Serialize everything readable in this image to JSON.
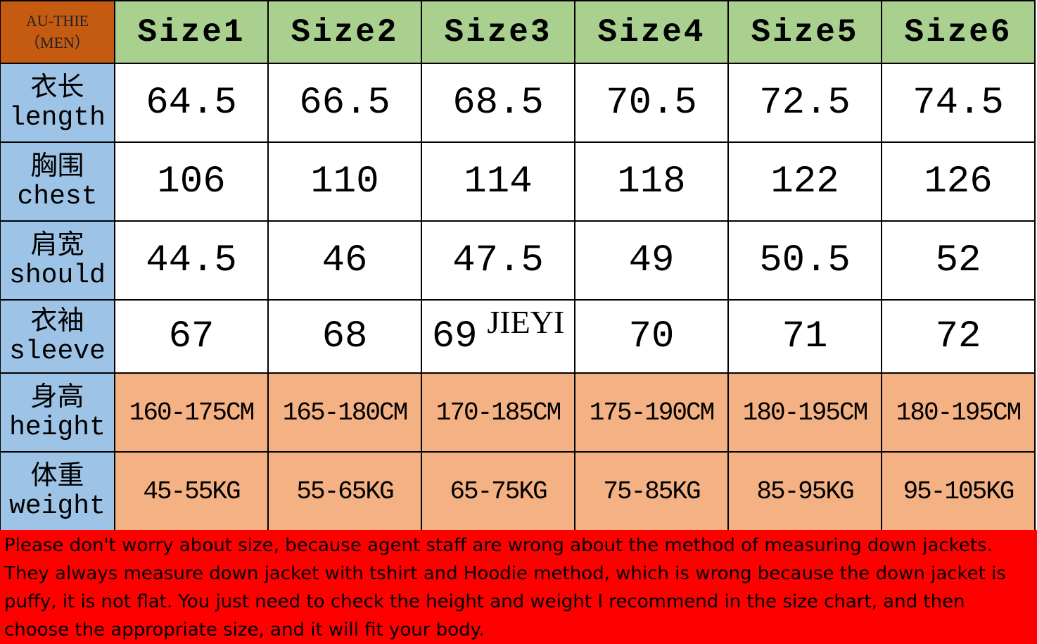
{
  "corner": {
    "line1": "AU-THIE",
    "line2": "（MEN）"
  },
  "headers": [
    "Size1",
    "Size2",
    "Size3",
    "Size4",
    "Size5",
    "Size6"
  ],
  "rows": [
    {
      "cn": "衣长",
      "en": "length",
      "values": [
        "64.5",
        "66.5",
        "68.5",
        "70.5",
        "72.5",
        "74.5"
      ]
    },
    {
      "cn": "胸围",
      "en": "chest",
      "values": [
        "106",
        "110",
        "114",
        "118",
        "122",
        "126"
      ]
    },
    {
      "cn": "肩宽",
      "en": "should",
      "values": [
        "44.5",
        "46",
        "47.5",
        "49",
        "50.5",
        "52"
      ]
    },
    {
      "cn": "衣袖",
      "en": "sleeve",
      "values": [
        "67",
        "68",
        "69",
        "70",
        "71",
        "72"
      ]
    },
    {
      "cn": "身高",
      "en": "height",
      "values": [
        "160-175CM",
        "165-180CM",
        "170-185CM",
        "175-190CM",
        "180-195CM",
        "180-195CM"
      ]
    },
    {
      "cn": "体重",
      "en": "weight",
      "values": [
        "45-55KG",
        "55-65KG",
        "65-75KG",
        "75-85KG",
        "85-95KG",
        "95-105KG"
      ]
    }
  ],
  "watermark": "JIEYI",
  "note": "Please don't worry about size, because agent staff are wrong about the method of measuring down jackets. They always measure down jacket with tshirt and Hoodie method, which is wrong because the down jacket is puffy, it is not flat. You just need to check the height and weight I recommend in the size chart, and then choose the appropriate size, and it will fit your body.",
  "colors": {
    "corner": "#c55a11",
    "header": "#a9d08e",
    "label": "#9dc3e6",
    "range": "#f4b183",
    "note": "#ff0000"
  }
}
